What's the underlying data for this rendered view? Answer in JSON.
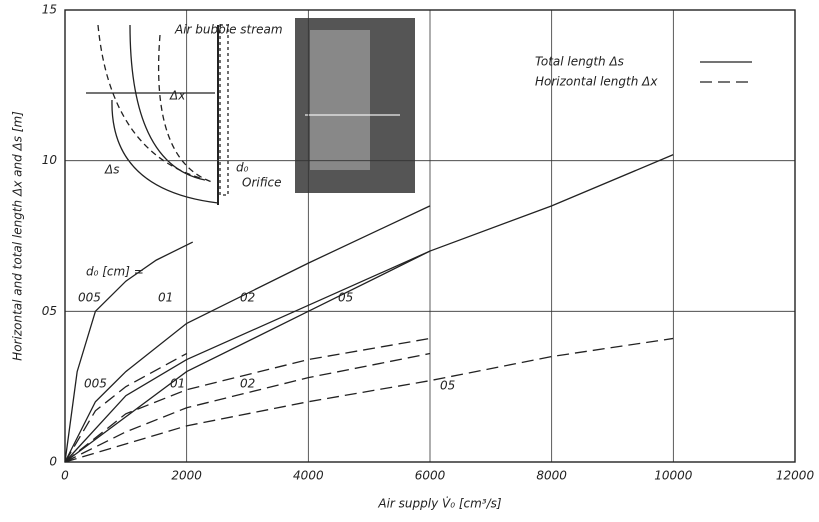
{
  "chart_data": {
    "type": "line",
    "x_label": "Air supply V̇₀ [cm³/s]",
    "y_label": "Horizontal and total length Δx and Δs [m]",
    "xlim": [
      0,
      12000
    ],
    "xticks": [
      0,
      2000,
      4000,
      6000,
      8000,
      10000,
      12000
    ],
    "ylim": [
      0,
      1.5
    ],
    "yticks": [
      0,
      {
        "value": 0.5,
        "label": "05"
      },
      {
        "value": 1.0,
        "label": "10"
      },
      {
        "value": 1.5,
        "label": "15"
      }
    ],
    "grid": true,
    "legend": [
      {
        "label": "Total length Δs",
        "dash": "solid"
      },
      {
        "label": "Horizontal length Δx",
        "dash": "dashed"
      }
    ],
    "curve_key": "d₀ [cm] =",
    "series": [
      {
        "name": "005",
        "dash": "solid",
        "color": "#222",
        "x": [
          0,
          200,
          500,
          1000,
          1500,
          2100
        ],
        "values": [
          0,
          0.3,
          0.5,
          0.6,
          0.67,
          0.73
        ]
      },
      {
        "name": "01",
        "dash": "solid",
        "color": "#222",
        "x": [
          0,
          500,
          1000,
          2000,
          4000,
          6000
        ],
        "values": [
          0,
          0.2,
          0.3,
          0.46,
          0.66,
          0.85
        ]
      },
      {
        "name": "02",
        "dash": "solid",
        "color": "#222",
        "x": [
          0,
          1000,
          2000,
          4000,
          6000
        ],
        "values": [
          0,
          0.22,
          0.34,
          0.52,
          0.7
        ]
      },
      {
        "name": "05",
        "dash": "solid",
        "color": "#222",
        "x": [
          0,
          2000,
          4000,
          6000,
          8000,
          10000
        ],
        "values": [
          0,
          0.3,
          0.5,
          0.7,
          0.85,
          1.02
        ]
      },
      {
        "name": "005",
        "dash": "dashed",
        "color": "#222",
        "x": [
          0,
          500,
          1000,
          2000
        ],
        "values": [
          0,
          0.17,
          0.25,
          0.36
        ]
      },
      {
        "name": "01",
        "dash": "dashed",
        "color": "#222",
        "x": [
          0,
          1000,
          2000,
          4000,
          6000
        ],
        "values": [
          0,
          0.16,
          0.24,
          0.34,
          0.41
        ]
      },
      {
        "name": "02",
        "dash": "dashed",
        "color": "#222",
        "x": [
          0,
          1000,
          2000,
          4000,
          6000
        ],
        "values": [
          0,
          0.1,
          0.18,
          0.28,
          0.36
        ]
      },
      {
        "name": "05",
        "dash": "dashed",
        "color": "#222",
        "x": [
          0,
          2000,
          4000,
          6000,
          8000,
          10000
        ],
        "values": [
          0,
          0.12,
          0.2,
          0.27,
          0.35,
          0.41
        ]
      }
    ],
    "inset_labels": [
      "Air bubble stream",
      "Δx",
      "Δs",
      "d₀",
      "Orifice"
    ]
  }
}
